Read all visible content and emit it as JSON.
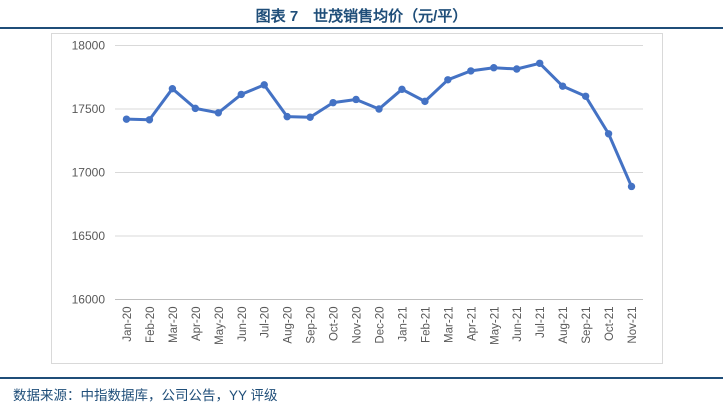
{
  "header": {
    "title": "图表 7　世茂销售均价（元/平）"
  },
  "footer": {
    "source": "数据来源：中指数据库，公司公告，YY 评级"
  },
  "colors": {
    "accent_navy": "#1F4E79",
    "series_line": "#4472C4",
    "gridline": "#D9D9D9",
    "axis_line": "#BFBFBF",
    "tick_text": "#595959"
  },
  "chart_data": {
    "type": "line",
    "title": "图表 7 世茂销售均价（元/平）",
    "xlabel": "",
    "ylabel": "",
    "categories": [
      "Jan-20",
      "Feb-20",
      "Mar-20",
      "Apr-20",
      "May-20",
      "Jun-20",
      "Jul-20",
      "Aug-20",
      "Sep-20",
      "Oct-20",
      "Nov-20",
      "Dec-20",
      "Jan-21",
      "Feb-21",
      "Mar-21",
      "Apr-21",
      "May-21",
      "Jun-21",
      "Jul-21",
      "Aug-21",
      "Sep-21",
      "Oct-21",
      "Nov-21"
    ],
    "series": [
      {
        "name": "世茂销售均价（元/平）",
        "values": [
          17420,
          17415,
          17660,
          17505,
          17470,
          17615,
          17690,
          17440,
          17435,
          17550,
          17575,
          17500,
          17655,
          17560,
          17730,
          17800,
          17825,
          17815,
          17860,
          17680,
          17600,
          17305,
          16890
        ]
      }
    ],
    "ylim": [
      16000,
      18000
    ],
    "yticks": [
      16000,
      16500,
      17000,
      17500,
      18000
    ],
    "grid": true,
    "legend": false,
    "marker": "circle"
  }
}
